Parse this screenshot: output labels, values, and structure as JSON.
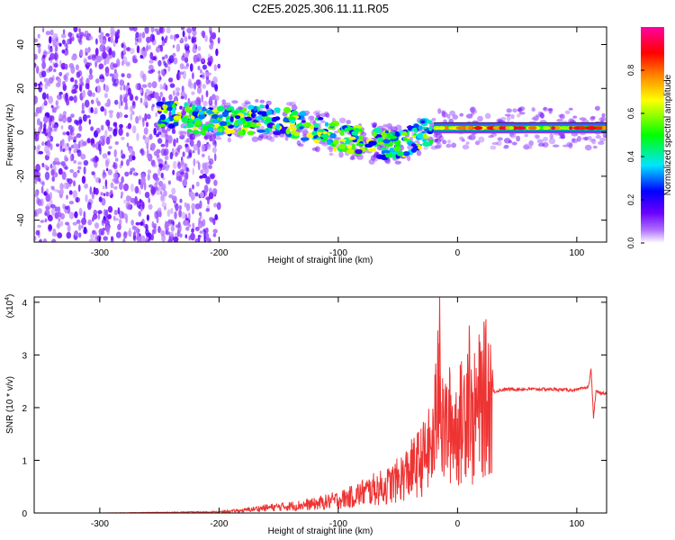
{
  "title": "C2E5.2025.306.11.11.R05",
  "chart_data": [
    {
      "type": "heatmap",
      "xlabel": "Height of straight line (km)",
      "ylabel": "Frequency (Hz)",
      "xlim": [
        -355,
        125
      ],
      "ylim": [
        -50,
        48
      ],
      "xticks": [
        -300,
        -200,
        -100,
        0,
        100
      ],
      "yticks": [
        -40,
        -20,
        0,
        20,
        40
      ],
      "colorbar": {
        "label": "Normalized spectral amplitude",
        "range": [
          0,
          1
        ],
        "ticks": [
          0.0,
          0.2,
          0.4,
          0.6,
          0.8
        ],
        "tick_labels": [
          "0.0",
          "0.2",
          "0.4",
          "0.6",
          "0.8"
        ],
        "colors": [
          "#ffffff",
          "#6a00ff",
          "#0000ff",
          "#00e5ff",
          "#00ff00",
          "#ffff00",
          "#ff8000",
          "#ff0000",
          "#ff00a0"
        ]
      },
      "features": {
        "noise_region_x": [
          -355,
          -200
        ],
        "ridge": [
          [
            -250,
            9
          ],
          [
            -220,
            6
          ],
          [
            -190,
            5
          ],
          [
            -160,
            6
          ],
          [
            -130,
            3
          ],
          [
            -100,
            -2
          ],
          [
            -70,
            -5
          ],
          [
            -50,
            -6
          ],
          [
            -35,
            -2
          ],
          [
            -20,
            2
          ],
          [
            0,
            2
          ],
          [
            50,
            2
          ],
          [
            125,
            2
          ]
        ]
      }
    },
    {
      "type": "line",
      "xlabel": "Height of straight line (km)",
      "ylabel": "SNR (10 * v/v)",
      "yscale_label": "(x10",
      "yscale_exp": "4",
      "yscale_close": ")",
      "xlim": [
        -355,
        125
      ],
      "ylim": [
        0,
        4.1
      ],
      "xticks": [
        -300,
        -200,
        -100,
        0,
        100
      ],
      "yticks": [
        0,
        1,
        2,
        3,
        4
      ],
      "color": "#ee3333",
      "x": [
        -355,
        -300,
        -250,
        -200,
        -180,
        -160,
        -140,
        -120,
        -100,
        -90,
        -80,
        -70,
        -60,
        -50,
        -40,
        -30,
        -25,
        -20,
        -17,
        -15,
        -14,
        -12,
        -10,
        -5,
        0,
        5,
        10,
        12,
        15,
        20,
        30,
        40,
        60,
        80,
        100,
        110,
        112,
        114,
        116,
        120,
        125
      ],
      "y": [
        0.0,
        0.0,
        0.01,
        0.02,
        0.05,
        0.1,
        0.13,
        0.17,
        0.25,
        0.3,
        0.38,
        0.45,
        0.5,
        0.62,
        0.8,
        1.0,
        1.15,
        1.3,
        2.2,
        4.1,
        1.6,
        1.5,
        1.6,
        1.7,
        1.6,
        1.8,
        2.7,
        1.5,
        1.9,
        2.1,
        2.3,
        2.35,
        2.35,
        2.35,
        2.33,
        2.4,
        2.75,
        1.8,
        2.3,
        2.27,
        2.28
      ]
    }
  ]
}
